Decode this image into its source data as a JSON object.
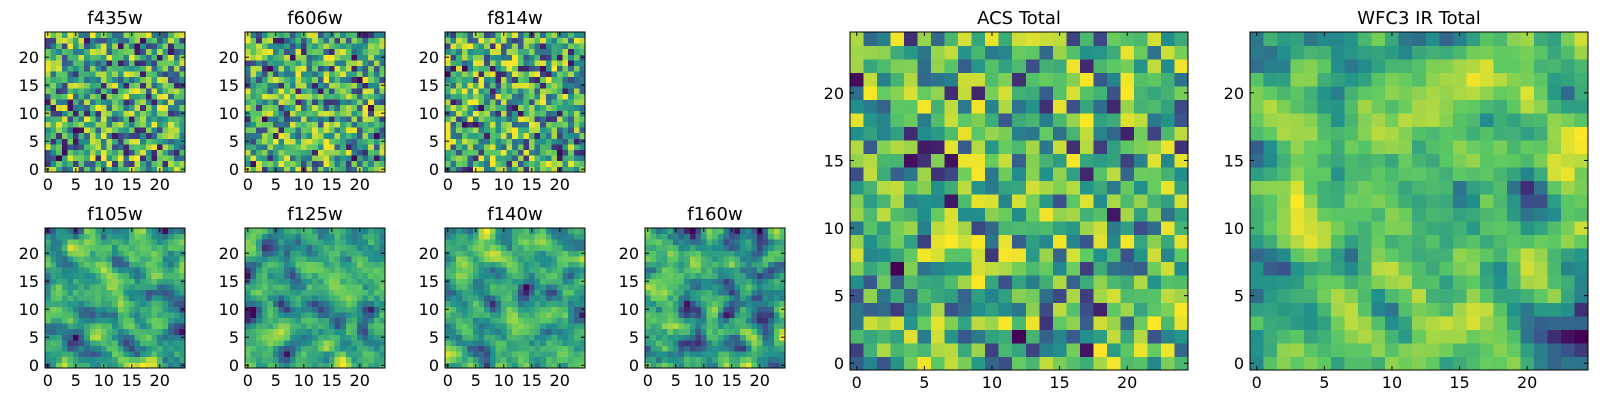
{
  "figure": {
    "colormap": "viridis",
    "colormap_stops": [
      "#440154",
      "#3b528b",
      "#21918c",
      "#5ec962",
      "#fde725"
    ]
  },
  "chart_data": [
    {
      "id": "f435w",
      "type": "heatmap",
      "title": "f435w",
      "grid_size": [
        25,
        25
      ],
      "xlim": [
        -0.5,
        24.5
      ],
      "ylim": [
        -0.5,
        24.5
      ],
      "xticks": [
        0,
        5,
        10,
        15,
        20
      ],
      "yticks": [
        0,
        5,
        10,
        15,
        20
      ],
      "value_range": [
        0,
        1
      ],
      "seed": 435,
      "smooth": 0,
      "bias": 0.35,
      "texture": "random pixel noise"
    },
    {
      "id": "f606w",
      "type": "heatmap",
      "title": "f606w",
      "grid_size": [
        25,
        25
      ],
      "xlim": [
        -0.5,
        24.5
      ],
      "ylim": [
        -0.5,
        24.5
      ],
      "xticks": [
        0,
        5,
        10,
        15,
        20
      ],
      "yticks": [
        0,
        5,
        10,
        15,
        20
      ],
      "value_range": [
        0,
        1
      ],
      "seed": 606,
      "smooth": 0,
      "bias": 0.35,
      "texture": "random pixel noise"
    },
    {
      "id": "f814w",
      "type": "heatmap",
      "title": "f814w",
      "grid_size": [
        25,
        25
      ],
      "xlim": [
        -0.5,
        24.5
      ],
      "ylim": [
        -0.5,
        24.5
      ],
      "xticks": [
        0,
        5,
        10,
        15,
        20
      ],
      "yticks": [
        0,
        5,
        10,
        15,
        20
      ],
      "value_range": [
        0,
        1
      ],
      "seed": 814,
      "smooth": 0,
      "bias": 0.35,
      "texture": "random pixel noise"
    },
    {
      "id": "f105w",
      "type": "heatmap",
      "title": "f105w",
      "grid_size": [
        25,
        25
      ],
      "xlim": [
        -0.5,
        24.5
      ],
      "ylim": [
        -0.5,
        24.5
      ],
      "xticks": [
        0,
        5,
        10,
        15,
        20
      ],
      "yticks": [
        0,
        5,
        10,
        15,
        20
      ],
      "value_range": [
        0,
        1
      ],
      "seed": 105,
      "smooth": 1,
      "bias": 0.3,
      "texture": "smoothed noise"
    },
    {
      "id": "f125w",
      "type": "heatmap",
      "title": "f125w",
      "grid_size": [
        25,
        25
      ],
      "xlim": [
        -0.5,
        24.5
      ],
      "ylim": [
        -0.5,
        24.5
      ],
      "xticks": [
        0,
        5,
        10,
        15,
        20
      ],
      "yticks": [
        0,
        5,
        10,
        15,
        20
      ],
      "value_range": [
        0,
        1
      ],
      "seed": 125,
      "smooth": 1,
      "bias": 0.3,
      "texture": "smoothed noise"
    },
    {
      "id": "f140w",
      "type": "heatmap",
      "title": "f140w",
      "grid_size": [
        25,
        25
      ],
      "xlim": [
        -0.5,
        24.5
      ],
      "ylim": [
        -0.5,
        24.5
      ],
      "xticks": [
        0,
        5,
        10,
        15,
        20
      ],
      "yticks": [
        0,
        5,
        10,
        15,
        20
      ],
      "value_range": [
        0,
        1
      ],
      "seed": 140,
      "smooth": 1,
      "bias": 0.3,
      "texture": "smoothed noise"
    },
    {
      "id": "f160w",
      "type": "heatmap",
      "title": "f160w",
      "grid_size": [
        25,
        25
      ],
      "xlim": [
        -0.5,
        24.5
      ],
      "ylim": [
        -0.5,
        24.5
      ],
      "xticks": [
        0,
        5,
        10,
        15,
        20
      ],
      "yticks": [
        0,
        5,
        10,
        15,
        20
      ],
      "value_range": [
        0,
        1
      ],
      "seed": 160,
      "smooth": 1,
      "bias": 0.3,
      "texture": "smoothed noise"
    },
    {
      "id": "acs-total",
      "type": "heatmap",
      "title": "ACS Total",
      "grid_size": [
        25,
        25
      ],
      "xlim": [
        -0.5,
        24.5
      ],
      "ylim": [
        -0.5,
        24.5
      ],
      "xticks": [
        0,
        5,
        10,
        15,
        20
      ],
      "yticks": [
        0,
        5,
        10,
        15,
        20
      ],
      "value_range": [
        0,
        1
      ],
      "seed": 1001,
      "smooth": 0,
      "bias": 0.4,
      "texture": "random pixel noise"
    },
    {
      "id": "wfc3-ir-total",
      "type": "heatmap",
      "title": "WFC3 IR Total",
      "grid_size": [
        25,
        25
      ],
      "xlim": [
        -0.5,
        24.5
      ],
      "ylim": [
        -0.5,
        24.5
      ],
      "xticks": [
        0,
        5,
        10,
        15,
        20
      ],
      "yticks": [
        0,
        5,
        10,
        15,
        20
      ],
      "value_range": [
        0,
        1
      ],
      "seed": 2002,
      "smooth": 1,
      "bias": 0.4,
      "texture": "smoothed noise"
    }
  ]
}
